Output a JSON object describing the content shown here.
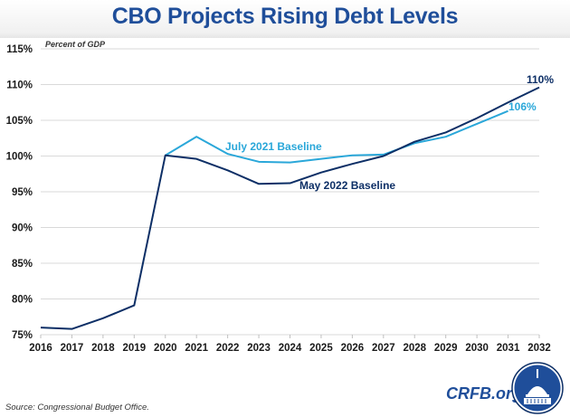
{
  "header": {
    "title": "CBO Projects Rising Debt Levels"
  },
  "footer": {
    "source": "Source: Congressional Budget Office.",
    "brand": "CRFB.org",
    "logo_icon": "capitol-dome-logo-icon"
  },
  "colors": {
    "title": "#1f4e9a",
    "may2022": "#0d2f66",
    "july2021": "#2aa7d9",
    "grid": "#d9d9d9"
  },
  "chart_data": {
    "type": "line",
    "title": "CBO Projects Rising Debt Levels",
    "ylabel": "Percent of GDP",
    "xlabel": "",
    "ylim": [
      75,
      115
    ],
    "yticks": [
      75,
      80,
      85,
      90,
      95,
      100,
      105,
      110,
      115
    ],
    "ytick_labels": [
      "75%",
      "80%",
      "85%",
      "90%",
      "95%",
      "100%",
      "105%",
      "110%",
      "115%"
    ],
    "x": [
      2016,
      2017,
      2018,
      2019,
      2020,
      2021,
      2022,
      2023,
      2024,
      2025,
      2026,
      2027,
      2028,
      2029,
      2030,
      2031,
      2032
    ],
    "xtick_labels": [
      "2016",
      "2017",
      "2018",
      "2019",
      "2020",
      "2021",
      "2022",
      "2023",
      "2024",
      "2025",
      "2026",
      "2027",
      "2028",
      "2029",
      "2030",
      "2031",
      "2032"
    ],
    "grid": true,
    "series": [
      {
        "name": "May 2022 Baseline",
        "color": "#0d2f66",
        "x": [
          2016,
          2017,
          2018,
          2019,
          2020,
          2021,
          2022,
          2023,
          2024,
          2025,
          2026,
          2027,
          2028,
          2029,
          2030,
          2031,
          2032
        ],
        "values": [
          76.0,
          75.8,
          77.3,
          79.1,
          100.1,
          99.6,
          98.0,
          96.1,
          96.2,
          97.7,
          98.9,
          100.0,
          102.0,
          103.3,
          105.3,
          107.5,
          109.6
        ],
        "end_label": "110%"
      },
      {
        "name": "July 2021 Baseline",
        "color": "#2aa7d9",
        "x": [
          2020,
          2021,
          2022,
          2023,
          2024,
          2025,
          2026,
          2027,
          2028,
          2029,
          2030,
          2031
        ],
        "values": [
          100.1,
          102.7,
          100.3,
          99.2,
          99.1,
          99.6,
          100.1,
          100.2,
          101.8,
          102.7,
          104.5,
          106.3
        ],
        "end_label": "106%"
      }
    ],
    "legend": "inline labels near lines"
  }
}
